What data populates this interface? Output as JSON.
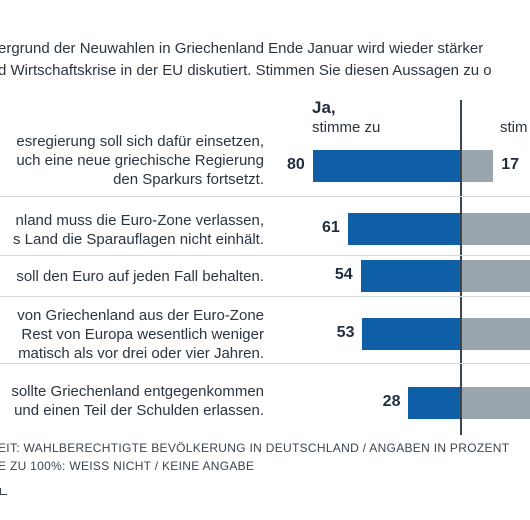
{
  "intro": {
    "line1": "ergrund der Neuwahlen in Griechenland Ende Januar wird wieder stärker",
    "line2": "d Wirtschaftskrise in der EU diskutiert. Stimmen Sie diesen Aussagen zu o"
  },
  "header": {
    "ja": "Ja,",
    "ja_sub": "stimme zu",
    "nein_sub": "stim"
  },
  "chart_data": {
    "type": "bar",
    "categories": [
      "esregierung soll sich dafür einsetzen, uch eine neue griechische Regierung den Sparkurs fortsetzt.",
      "nland muss die Euro-Zone verlassen, s Land die Sparauflagen nicht einhält.",
      "soll den Euro auf jeden Fall behalten.",
      "von Griechenland aus der Euro-Zone Rest von Europa wesentlich weniger matisch als vor drei oder vier Jahren.",
      "sollte Griechenland entgegenkommen und einen Teil der Schulden erlassen."
    ],
    "series": [
      {
        "name": "Ja, stimme zu",
        "values": [
          80,
          61,
          54,
          53,
          28
        ]
      },
      {
        "name": "stim",
        "values": [
          17,
          null,
          null,
          null,
          null
        ]
      }
    ],
    "xlim": [
      0,
      100
    ],
    "colors": {
      "ja": "#0f5fa6",
      "nein": "#9aa5ae"
    }
  },
  "statements": [
    {
      "lines": [
        "esregierung soll sich dafür einsetzen,",
        "uch eine neue griechische Regierung",
        "den Sparkurs fortsetzt."
      ],
      "ja_label": "80",
      "nein_label": "17"
    },
    {
      "lines": [
        "nland muss die Euro-Zone verlassen,",
        "s Land die Sparauflagen nicht einhält."
      ],
      "ja_label": "61",
      "nein_label": ""
    },
    {
      "lines": [
        "soll den Euro auf jeden Fall behalten."
      ],
      "ja_label": "54",
      "nein_label": ""
    },
    {
      "lines": [
        "von Griechenland aus der Euro-Zone",
        "Rest von Europa wesentlich weniger",
        "matisch als vor drei oder vier Jahren."
      ],
      "ja_label": "53",
      "nein_label": ""
    },
    {
      "lines": [
        "sollte Griechenland entgegenkommen",
        "und einen Teil der Schulden erlassen."
      ],
      "ja_label": "28",
      "nein_label": ""
    }
  ],
  "source": {
    "line1": "EIT: WAHLBERECHTIGTE BEVÖLKERUNG IN DEUTSCHLAND / ANGABEN IN PROZENT",
    "line2": "E ZU 100%: WEISS NICHT / KEINE ANGABE"
  }
}
